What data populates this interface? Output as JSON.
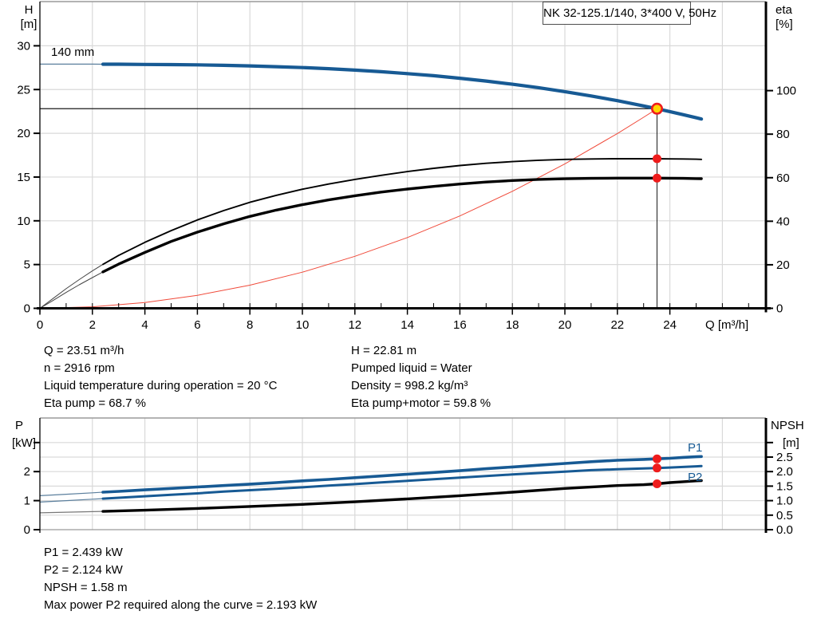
{
  "title_box": {
    "label": "NK 32-125.1/140, 3*400 V, 50Hz"
  },
  "info_top": {
    "left": [
      "Q = 23.51 m³/h",
      "n = 2916 rpm",
      "Liquid temperature during operation = 20 °C",
      "Eta pump = 68.7 %"
    ],
    "right": [
      "H = 22.81 m",
      "Pumped liquid = Water",
      "Density = 998.2 kg/m³",
      "Eta pump+motor = 59.8 %"
    ]
  },
  "info_bottom": {
    "lines": [
      "P1 = 2.439 kW",
      "P2 = 2.124 kW",
      "NPSH = 1.58 m",
      "Max power P2 required along the curve = 2.193 kW"
    ]
  },
  "colors": {
    "curve_blue": "#175a94",
    "curve_black": "#000000",
    "system_curve_red": "#f04a3a",
    "marker_red": "#ee1c1c",
    "marker_yellow": "#ffd400",
    "grid": "#d9d9d9",
    "frame_gray": "#9a9a9a",
    "axis": "#000000",
    "duty_line": "#1a1a1a"
  },
  "chart_data": [
    {
      "id": "qh-eta-chart",
      "type": "line",
      "title": "NK 32-125.1/140, 3*400 V, 50Hz",
      "impeller_label": "140 mm",
      "x_axis": {
        "label": "Q [m³/h]",
        "major_ticks": [
          0,
          2,
          4,
          6,
          8,
          10,
          12,
          14,
          16,
          18,
          20,
          22,
          24
        ],
        "minor_tick_step": 1,
        "min": 0,
        "max": 27.7
      },
      "y_left": {
        "label": [
          "H",
          "[m]"
        ],
        "ticks": [
          0,
          5,
          10,
          15,
          20,
          25,
          30
        ],
        "min": 0,
        "max": 35
      },
      "y_right": {
        "label": [
          "eta",
          "[%]"
        ],
        "ticks": [
          0,
          20,
          40,
          60,
          80,
          100
        ],
        "min": 0,
        "max": 140
      },
      "duty_point": {
        "q": 23.51,
        "h": 22.81,
        "eta_pump": 68.7,
        "eta_pump_motor": 59.8
      },
      "series": [
        {
          "name": "qh-140mm",
          "axis": "left",
          "style": "blue-thick",
          "points": [
            [
              0,
              27.9
            ],
            [
              1,
              27.9
            ],
            [
              2,
              27.9
            ],
            [
              2.4,
              27.89
            ],
            [
              3,
              27.89
            ],
            [
              4,
              27.87
            ],
            [
              5,
              27.85
            ],
            [
              6,
              27.82
            ],
            [
              7,
              27.77
            ],
            [
              8,
              27.7
            ],
            [
              9,
              27.61
            ],
            [
              10,
              27.51
            ],
            [
              11,
              27.38
            ],
            [
              12,
              27.22
            ],
            [
              13,
              27.04
            ],
            [
              14,
              26.82
            ],
            [
              15,
              26.58
            ],
            [
              16,
              26.29
            ],
            [
              17,
              25.97
            ],
            [
              18,
              25.61
            ],
            [
              19,
              25.21
            ],
            [
              20,
              24.76
            ],
            [
              21,
              24.27
            ],
            [
              22,
              23.73
            ],
            [
              23,
              23.13
            ],
            [
              23.51,
              22.81
            ],
            [
              24,
              22.48
            ],
            [
              24.5,
              22.13
            ],
            [
              25,
              21.78
            ],
            [
              25.2,
              21.63
            ]
          ]
        },
        {
          "name": "eta-pump",
          "axis": "right",
          "style": "black-thin",
          "points": [
            [
              0,
              0
            ],
            [
              0.5,
              4.5
            ],
            [
              1,
              9
            ],
            [
              1.5,
              13.2
            ],
            [
              2,
              17.2
            ],
            [
              2.4,
              20.2
            ],
            [
              3,
              24.3
            ],
            [
              4,
              30.3
            ],
            [
              5,
              35.7
            ],
            [
              6,
              40.6
            ],
            [
              7,
              44.9
            ],
            [
              8,
              48.7
            ],
            [
              9,
              51.9
            ],
            [
              10,
              54.7
            ],
            [
              11,
              57.1
            ],
            [
              12,
              59.2
            ],
            [
              13,
              61.1
            ],
            [
              14,
              62.8
            ],
            [
              15,
              64.3
            ],
            [
              16,
              65.6
            ],
            [
              17,
              66.6
            ],
            [
              18,
              67.4
            ],
            [
              19,
              68
            ],
            [
              20,
              68.4
            ],
            [
              21,
              68.6
            ],
            [
              22,
              68.7
            ],
            [
              23,
              68.72
            ],
            [
              23.51,
              68.7
            ],
            [
              24,
              68.65
            ],
            [
              24.5,
              68.58
            ],
            [
              25,
              68.48
            ],
            [
              25.2,
              68.43
            ]
          ]
        },
        {
          "name": "eta-pump-motor",
          "axis": "right",
          "style": "black-thick",
          "points": [
            [
              0,
              0
            ],
            [
              0.5,
              3.6
            ],
            [
              1,
              7.3
            ],
            [
              1.5,
              10.8
            ],
            [
              2,
              14.1
            ],
            [
              2.4,
              16.7
            ],
            [
              3,
              20.3
            ],
            [
              4,
              25.7
            ],
            [
              5,
              30.7
            ],
            [
              6,
              35
            ],
            [
              7,
              38.8
            ],
            [
              8,
              42.2
            ],
            [
              9,
              45.1
            ],
            [
              10,
              47.6
            ],
            [
              11,
              49.8
            ],
            [
              12,
              51.7
            ],
            [
              13,
              53.4
            ],
            [
              14,
              54.8
            ],
            [
              15,
              56
            ],
            [
              16,
              57.1
            ],
            [
              17,
              58
            ],
            [
              18,
              58.7
            ],
            [
              19,
              59.2
            ],
            [
              20,
              59.5
            ],
            [
              21,
              59.7
            ],
            [
              22,
              59.8
            ],
            [
              23,
              59.82
            ],
            [
              23.51,
              59.8
            ],
            [
              24,
              59.76
            ],
            [
              24.5,
              59.7
            ],
            [
              25,
              59.6
            ],
            [
              25.2,
              59.55
            ]
          ]
        },
        {
          "name": "system-curve",
          "axis": "left",
          "style": "red-thin",
          "points": [
            [
              0,
              0
            ],
            [
              2,
              0.17
            ],
            [
              4,
              0.66
            ],
            [
              6,
              1.49
            ],
            [
              8,
              2.64
            ],
            [
              10,
              4.13
            ],
            [
              12,
              5.94
            ],
            [
              14,
              8.09
            ],
            [
              16,
              10.56
            ],
            [
              18,
              13.37
            ],
            [
              20,
              16.51
            ],
            [
              22,
              19.97
            ],
            [
              23,
              21.83
            ],
            [
              23.51,
              22.81
            ]
          ]
        }
      ]
    },
    {
      "id": "power-npsh-chart",
      "type": "line",
      "title": "",
      "x_axis": {
        "label": "",
        "min": 0,
        "max": 27.7
      },
      "y_left": {
        "label": [
          "P",
          "[kW]"
        ],
        "ticks": [
          0,
          1,
          2
        ],
        "extra_ticks": [
          3
        ],
        "min": 0,
        "max": 3.85
      },
      "y_right": {
        "label": [
          "NPSH",
          "[m]"
        ],
        "ticks": [
          0,
          0.5,
          1,
          1.5,
          2,
          2.5
        ],
        "tick_labels": [
          "0.0",
          "0.5",
          "1.0",
          "1.5",
          "2.0",
          "2.5"
        ],
        "extra_ticks": [
          3
        ],
        "min": 0,
        "max": 3.85
      },
      "curve_labels": [
        {
          "text": "P1"
        },
        {
          "text": "P2"
        }
      ],
      "duty_point": {
        "q": 23.51,
        "p1": 2.439,
        "p2": 2.124,
        "npsh": 1.58
      },
      "series": [
        {
          "name": "p1",
          "axis": "left",
          "style": "blue-thick",
          "points": [
            [
              0,
              1.17
            ],
            [
              1,
              1.22
            ],
            [
              2,
              1.27
            ],
            [
              2.4,
              1.29
            ],
            [
              3,
              1.32
            ],
            [
              4,
              1.37
            ],
            [
              5,
              1.42
            ],
            [
              6,
              1.47
            ],
            [
              7,
              1.52
            ],
            [
              8,
              1.57
            ],
            [
              9,
              1.62
            ],
            [
              10,
              1.68
            ],
            [
              11,
              1.73
            ],
            [
              12,
              1.79
            ],
            [
              13,
              1.85
            ],
            [
              14,
              1.91
            ],
            [
              15,
              1.97
            ],
            [
              16,
              2.03
            ],
            [
              17,
              2.1
            ],
            [
              18,
              2.16
            ],
            [
              19,
              2.22
            ],
            [
              20,
              2.28
            ],
            [
              21,
              2.34
            ],
            [
              22,
              2.39
            ],
            [
              23,
              2.42
            ],
            [
              23.51,
              2.44
            ],
            [
              24,
              2.46
            ],
            [
              24.5,
              2.49
            ],
            [
              25,
              2.51
            ],
            [
              25.2,
              2.52
            ]
          ]
        },
        {
          "name": "p2",
          "axis": "left",
          "style": "blue-medium",
          "points": [
            [
              0,
              0.95
            ],
            [
              1,
              1
            ],
            [
              2,
              1.05
            ],
            [
              2.4,
              1.07
            ],
            [
              3,
              1.1
            ],
            [
              4,
              1.15
            ],
            [
              5,
              1.2
            ],
            [
              6,
              1.25
            ],
            [
              7,
              1.31
            ],
            [
              8,
              1.36
            ],
            [
              9,
              1.41
            ],
            [
              10,
              1.46
            ],
            [
              11,
              1.52
            ],
            [
              12,
              1.57
            ],
            [
              13,
              1.63
            ],
            [
              14,
              1.68
            ],
            [
              15,
              1.74
            ],
            [
              16,
              1.79
            ],
            [
              17,
              1.85
            ],
            [
              18,
              1.9
            ],
            [
              19,
              1.95
            ],
            [
              20,
              2
            ],
            [
              21,
              2.05
            ],
            [
              22,
              2.08
            ],
            [
              23,
              2.11
            ],
            [
              23.51,
              2.12
            ],
            [
              24,
              2.14
            ],
            [
              24.5,
              2.16
            ],
            [
              25,
              2.18
            ],
            [
              25.2,
              2.19
            ]
          ]
        },
        {
          "name": "npsh",
          "axis": "right",
          "style": "black-thick",
          "points": [
            [
              0,
              0.58
            ],
            [
              2,
              0.62
            ],
            [
              2.4,
              0.63
            ],
            [
              4,
              0.67
            ],
            [
              6,
              0.73
            ],
            [
              8,
              0.8
            ],
            [
              10,
              0.87
            ],
            [
              12,
              0.96
            ],
            [
              14,
              1.06
            ],
            [
              16,
              1.17
            ],
            [
              18,
              1.29
            ],
            [
              20,
              1.42
            ],
            [
              22,
              1.52
            ],
            [
              23,
              1.55
            ],
            [
              23.51,
              1.58
            ],
            [
              24,
              1.62
            ],
            [
              24.5,
              1.65
            ],
            [
              25,
              1.68
            ],
            [
              25.2,
              1.69
            ]
          ]
        }
      ]
    }
  ]
}
